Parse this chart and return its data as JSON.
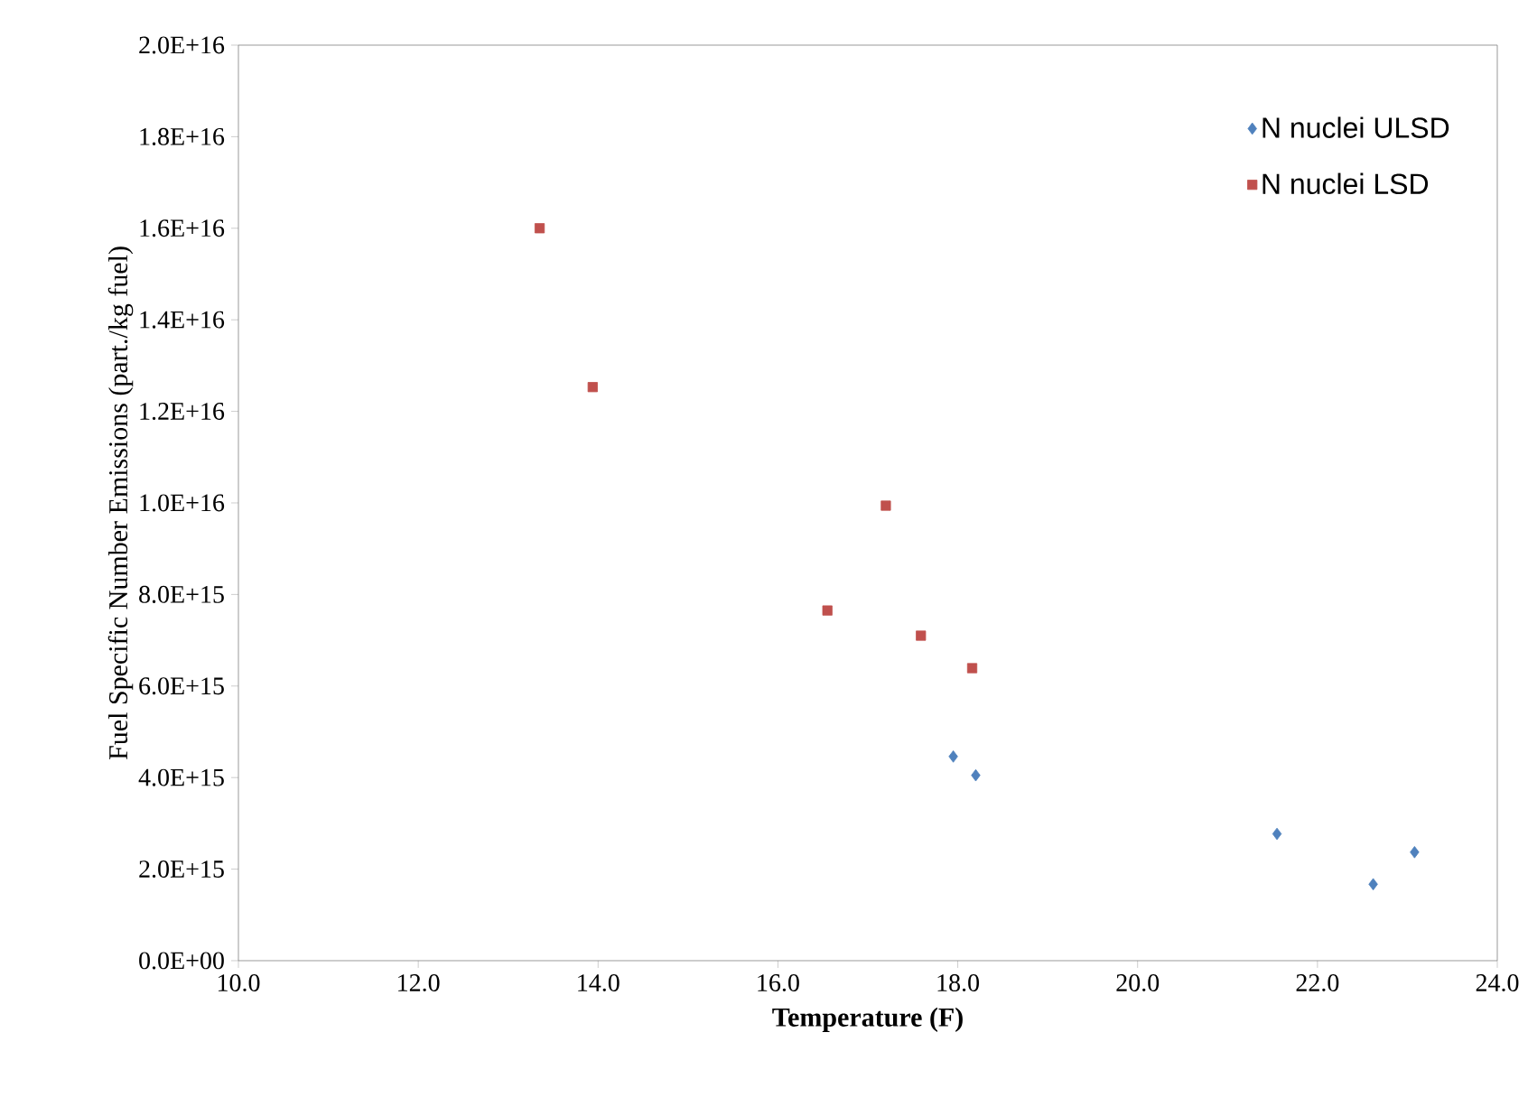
{
  "chart_data": {
    "type": "scatter",
    "xlabel": "Temperature (F)",
    "ylabel": "Fuel Specific Number Emissions (part./kg fuel)",
    "xlim": [
      10,
      24
    ],
    "xticks": [
      {
        "value": 10,
        "label": "10.0"
      },
      {
        "value": 12,
        "label": "12.0"
      },
      {
        "value": 14,
        "label": "14.0"
      },
      {
        "value": 16,
        "label": "16.0"
      },
      {
        "value": 18,
        "label": "18.0"
      },
      {
        "value": 20,
        "label": "20.0"
      },
      {
        "value": 22,
        "label": "22.0"
      },
      {
        "value": 24,
        "label": "24.0"
      }
    ],
    "ylim": [
      0,
      2e+16
    ],
    "yticks": [
      {
        "value": 0,
        "label": "0.0E+00"
      },
      {
        "value": 2000000000000000.0,
        "label": "2.0E+15"
      },
      {
        "value": 4000000000000000.0,
        "label": "4.0E+15"
      },
      {
        "value": 6000000000000000.0,
        "label": "6.0E+15"
      },
      {
        "value": 8000000000000000.0,
        "label": "8.0E+15"
      },
      {
        "value": 1e+16,
        "label": "1.0E+16"
      },
      {
        "value": 1.2e+16,
        "label": "1.2E+16"
      },
      {
        "value": 1.4e+16,
        "label": "1.4E+16"
      },
      {
        "value": 1.6e+16,
        "label": "1.6E+16"
      },
      {
        "value": 1.8e+16,
        "label": "1.8E+16"
      },
      {
        "value": 2e+16,
        "label": "2.0E+16"
      }
    ],
    "legend": "top right",
    "grid": false,
    "series": [
      {
        "name": "N nuclei ULSD",
        "color": "#4f81bd",
        "marker": "diamond",
        "x": [
          17.95,
          18.2,
          21.55,
          22.62,
          23.08
        ],
        "values": [
          4460000000000000.0,
          4050000000000000.0,
          2770000000000000.0,
          1670000000000000.0,
          2370000000000000.0
        ]
      },
      {
        "name": "N nuclei LSD",
        "color": "#c0504d",
        "marker": "square",
        "x": [
          13.35,
          13.94,
          17.2,
          16.55,
          17.59,
          18.16
        ],
        "values": [
          1.6e+16,
          1.253e+16,
          9940000000000000.0,
          7650000000000000.0,
          7100000000000000.0,
          6390000000000000.0
        ]
      }
    ]
  }
}
